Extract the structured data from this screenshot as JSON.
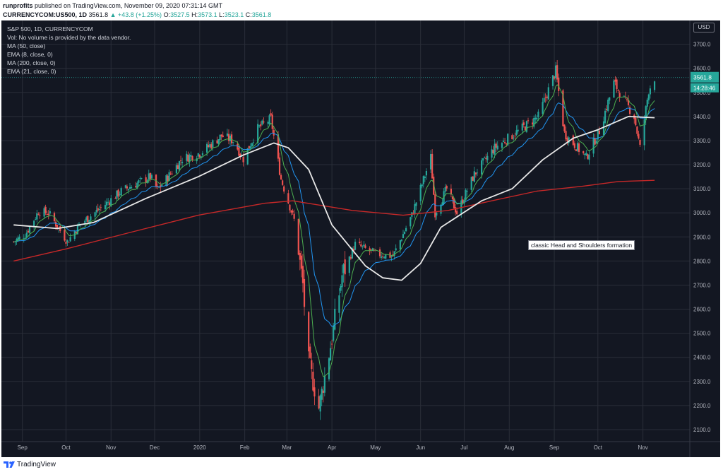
{
  "header": {
    "author": "runprofits",
    "published": "published on TradingView.com, November 09, 2020 07:31:14 GMT",
    "symbol": "CURRENCYCOM:US500, 1D",
    "price": "3561.8",
    "change": "▲ +43.8 (+1.25%)",
    "ohlc_o_label": "O:",
    "ohlc_o": "3527.5",
    "ohlc_h_label": "H:",
    "ohlc_h": "3573.1",
    "ohlc_l_label": "L:",
    "ohlc_l": "3523.1",
    "ohlc_c_label": "C:",
    "ohlc_c": "3561.8"
  },
  "legend": {
    "title": "S&P 500, 1D, CURRENCYCOM",
    "vol": "Vol: No volume is provided by the data vendor.",
    "ind1": "MA (50, close)",
    "ind2": "EMA (8, close, 0)",
    "ind3": "MA (200, close, 0)",
    "ind4": "EMA (21, close, 0)"
  },
  "axis": {
    "currency": "USD",
    "last_price": "3561.8",
    "countdown": "14:28:46"
  },
  "annotation": "classic Head and Shoulders formation",
  "footer": {
    "brand": "TradingView"
  },
  "chart_data": {
    "type": "line",
    "y_ticks": [
      2100,
      2200,
      2300,
      2400,
      2500,
      2600,
      2700,
      2800,
      2900,
      3000,
      3100,
      3200,
      3300,
      3400,
      3500,
      3600,
      3700
    ],
    "ylim": [
      2050,
      3740
    ],
    "x_ticks": [
      "Sep",
      "Oct",
      "Nov",
      "Dec",
      "2020",
      "Feb",
      "Mar",
      "Apr",
      "May",
      "Jun",
      "Jul",
      "Aug",
      "Sep",
      "Oct",
      "Nov"
    ],
    "last_price": 3561.8,
    "colors": {
      "up": "#26a69a",
      "down": "#ef5350",
      "ma50": "#e8e8e8",
      "ma200": "#c62828",
      "ema8": "#4caf50",
      "ema21": "#2196f3",
      "grid": "#2a2e39",
      "axis_text": "#b2b5be"
    },
    "price_path": [
      [
        "2019-08-26",
        2880
      ],
      [
        "2019-09-03",
        2910
      ],
      [
        "2019-09-12",
        3005
      ],
      [
        "2019-09-19",
        3000
      ],
      [
        "2019-10-02",
        2880
      ],
      [
        "2019-10-10",
        2950
      ],
      [
        "2019-10-25",
        3020
      ],
      [
        "2019-11-08",
        3090
      ],
      [
        "2019-11-28",
        3150
      ],
      [
        "2019-12-03",
        3095
      ],
      [
        "2019-12-20",
        3225
      ],
      [
        "2020-01-02",
        3250
      ],
      [
        "2020-01-16",
        3320
      ],
      [
        "2020-01-24",
        3300
      ],
      [
        "2020-01-31",
        3225
      ],
      [
        "2020-02-10",
        3350
      ],
      [
        "2020-02-19",
        3390
      ],
      [
        "2020-02-26",
        3140
      ],
      [
        "2020-03-06",
        2970
      ],
      [
        "2020-03-12",
        2700
      ],
      [
        "2020-03-16",
        2380
      ],
      [
        "2020-03-23",
        2190
      ],
      [
        "2020-04-01",
        2480
      ],
      [
        "2020-04-08",
        2740
      ],
      [
        "2020-04-17",
        2870
      ],
      [
        "2020-05-01",
        2830
      ],
      [
        "2020-05-13",
        2820
      ],
      [
        "2020-05-26",
        2990
      ],
      [
        "2020-06-08",
        3230
      ],
      [
        "2020-06-11",
        3000
      ],
      [
        "2020-06-19",
        3100
      ],
      [
        "2020-06-26",
        3000
      ],
      [
        "2020-07-08",
        3160
      ],
      [
        "2020-07-22",
        3270
      ],
      [
        "2020-08-05",
        3330
      ],
      [
        "2020-08-21",
        3400
      ],
      [
        "2020-09-02",
        3590
      ],
      [
        "2020-09-08",
        3330
      ],
      [
        "2020-09-23",
        3230
      ],
      [
        "2020-10-02",
        3340
      ],
      [
        "2020-10-12",
        3540
      ],
      [
        "2020-10-26",
        3400
      ],
      [
        "2020-10-30",
        3270
      ],
      [
        "2020-11-05",
        3510
      ],
      [
        "2020-11-09",
        3562
      ]
    ],
    "ma50_path": [
      [
        "2019-08-26",
        2950
      ],
      [
        "2019-09-25",
        2935
      ],
      [
        "2019-10-20",
        2960
      ],
      [
        "2019-11-25",
        3060
      ],
      [
        "2019-12-31",
        3150
      ],
      [
        "2020-01-31",
        3240
      ],
      [
        "2020-02-21",
        3290
      ],
      [
        "2020-03-02",
        3270
      ],
      [
        "2020-03-16",
        3180
      ],
      [
        "2020-04-01",
        2950
      ],
      [
        "2020-04-24",
        2780
      ],
      [
        "2020-05-06",
        2730
      ],
      [
        "2020-05-19",
        2720
      ],
      [
        "2020-06-01",
        2790
      ],
      [
        "2020-06-15",
        2940
      ],
      [
        "2020-07-13",
        3050
      ],
      [
        "2020-08-03",
        3100
      ],
      [
        "2020-08-24",
        3220
      ],
      [
        "2020-09-14",
        3310
      ],
      [
        "2020-10-01",
        3345
      ],
      [
        "2020-10-22",
        3400
      ],
      [
        "2020-11-09",
        3395
      ]
    ],
    "ma200_path": [
      [
        "2019-08-26",
        2800
      ],
      [
        "2019-10-01",
        2850
      ],
      [
        "2019-11-15",
        2920
      ],
      [
        "2019-12-31",
        2990
      ],
      [
        "2020-02-15",
        3040
      ],
      [
        "2020-03-05",
        3050
      ],
      [
        "2020-04-15",
        3010
      ],
      [
        "2020-05-20",
        2990
      ],
      [
        "2020-06-20",
        3010
      ],
      [
        "2020-07-20",
        3050
      ],
      [
        "2020-08-20",
        3090
      ],
      [
        "2020-09-20",
        3110
      ],
      [
        "2020-10-15",
        3130
      ],
      [
        "2020-11-09",
        3135
      ]
    ]
  }
}
